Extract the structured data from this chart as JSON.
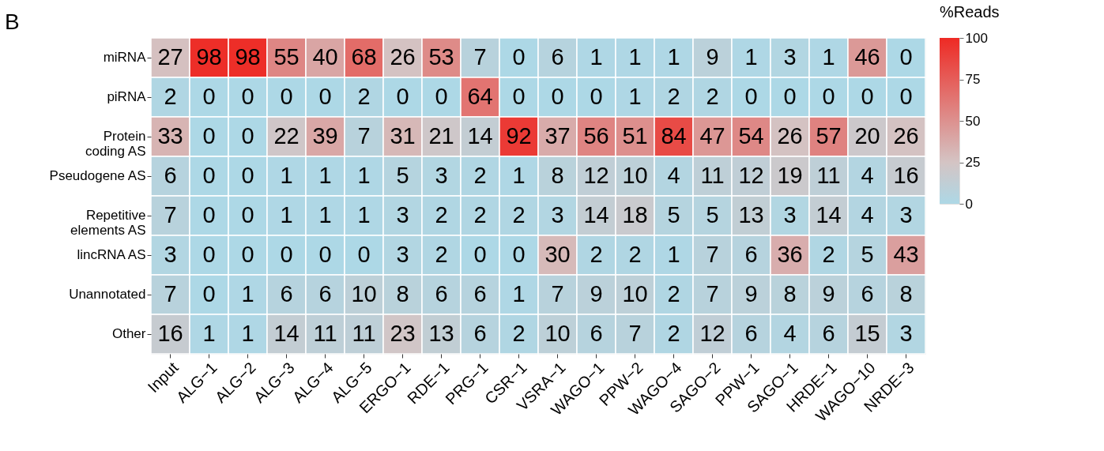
{
  "chart_data": {
    "type": "heatmap",
    "annotations": [
      "B"
    ],
    "legend_title": "%Reads",
    "data_labels": true,
    "categories": [
      "Input",
      "ALG−1",
      "ALG−2",
      "ALG−3",
      "ALG−4",
      "ALG−5",
      "ERGO−1",
      "RDE−1",
      "PRG−1",
      "CSR−1",
      "VSRA−1",
      "WAGO−1",
      "PPW−2",
      "WAGO−4",
      "SAGO−2",
      "PPW−1",
      "SAGO−1",
      "HRDE−1",
      "WAGO−10",
      "NRDE−3"
    ],
    "y_categories": [
      "miRNA",
      "piRNA",
      "Protein coding AS",
      "Pseudogene AS",
      "Repetitive elements AS",
      "lincRNA AS",
      "Unannotated",
      "Other"
    ],
    "cells": [
      [
        27,
        98,
        98,
        55,
        40,
        68,
        26,
        53,
        7,
        0,
        6,
        1,
        1,
        1,
        9,
        1,
        3,
        1,
        46,
        0
      ],
      [
        2,
        0,
        0,
        0,
        0,
        2,
        0,
        0,
        64,
        0,
        0,
        0,
        1,
        2,
        2,
        0,
        0,
        0,
        0,
        0
      ],
      [
        33,
        0,
        0,
        22,
        39,
        7,
        31,
        21,
        14,
        92,
        37,
        56,
        51,
        84,
        47,
        54,
        26,
        57,
        20,
        26
      ],
      [
        6,
        0,
        0,
        1,
        1,
        1,
        5,
        3,
        2,
        1,
        8,
        12,
        10,
        4,
        11,
        12,
        19,
        11,
        4,
        16
      ],
      [
        7,
        0,
        0,
        1,
        1,
        1,
        3,
        2,
        2,
        2,
        3,
        14,
        18,
        5,
        5,
        13,
        3,
        14,
        4,
        3
      ],
      [
        3,
        0,
        0,
        0,
        0,
        0,
        3,
        2,
        0,
        0,
        30,
        2,
        2,
        1,
        7,
        6,
        36,
        2,
        5,
        43
      ],
      [
        7,
        0,
        1,
        6,
        6,
        10,
        8,
        6,
        6,
        1,
        7,
        9,
        10,
        2,
        7,
        9,
        8,
        9,
        6,
        8
      ],
      [
        16,
        1,
        1,
        14,
        11,
        11,
        23,
        13,
        6,
        2,
        10,
        6,
        7,
        2,
        12,
        6,
        4,
        6,
        15,
        3
      ]
    ],
    "clim": [
      0,
      100
    ],
    "cticks": [
      0,
      25,
      50,
      75,
      100
    ]
  }
}
